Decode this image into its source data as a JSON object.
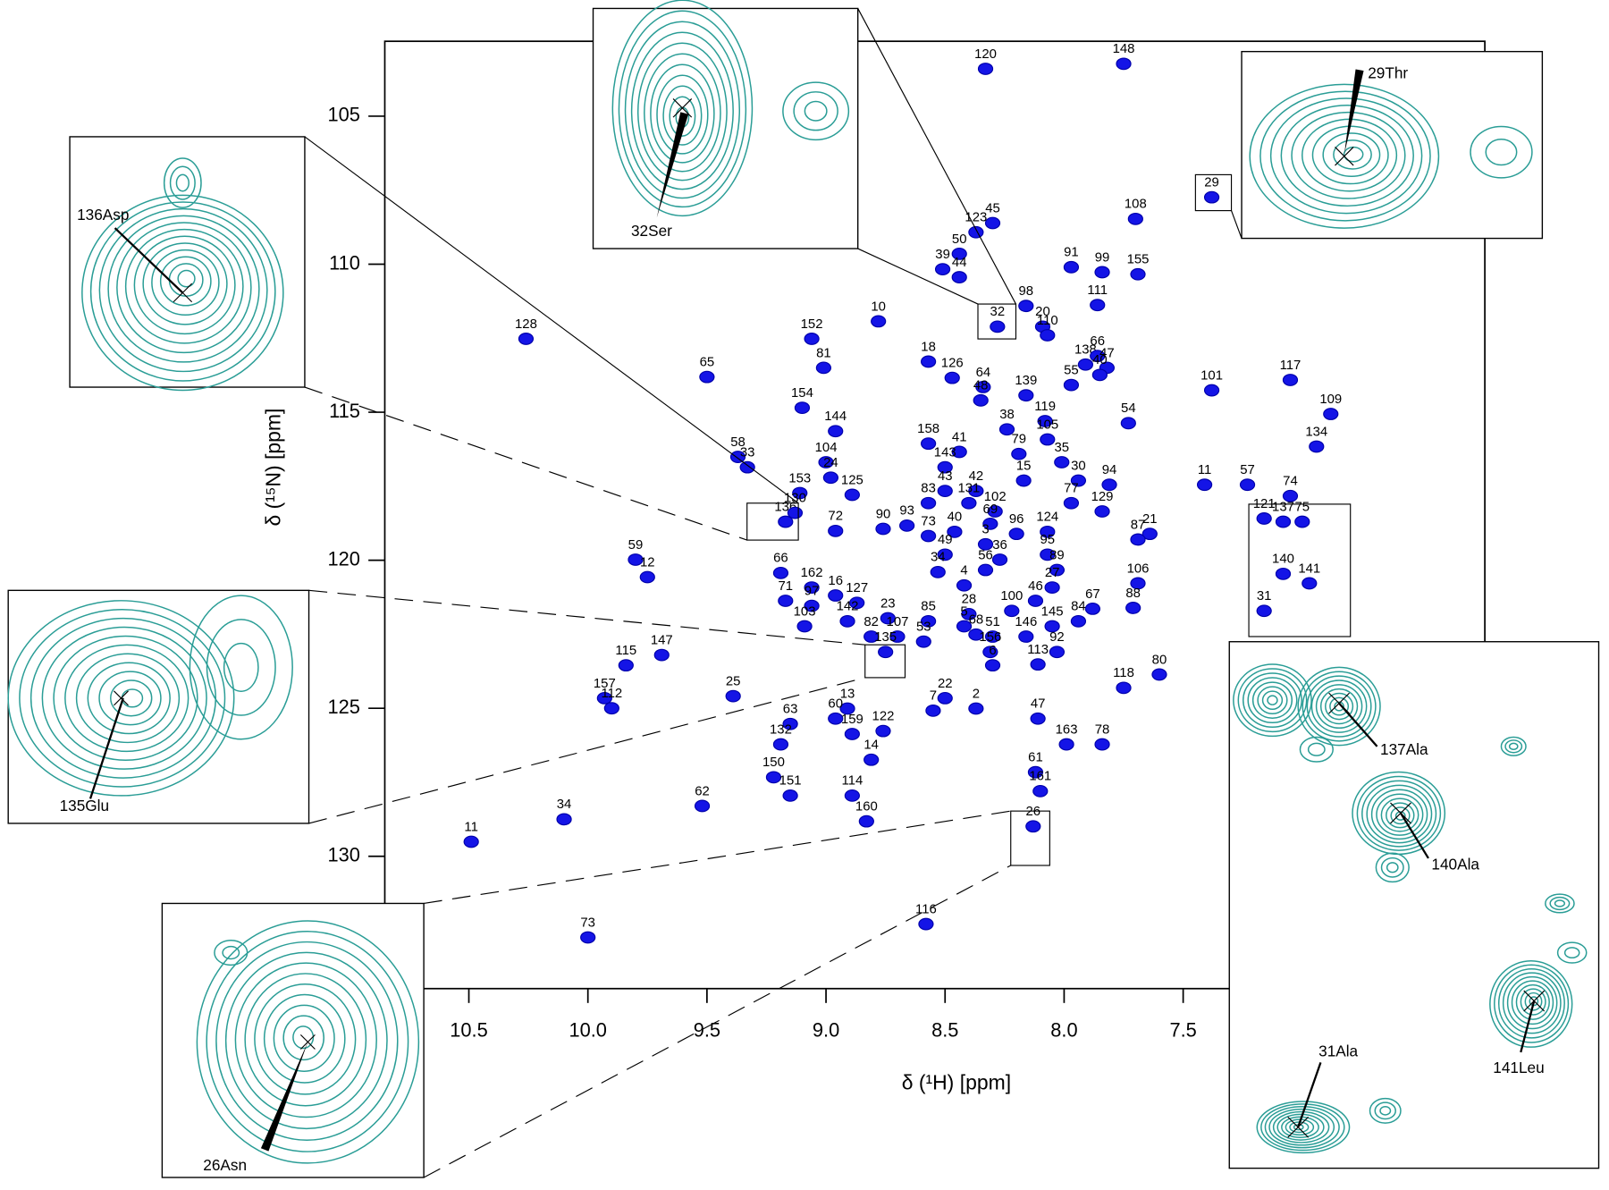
{
  "chart_data": {
    "type": "scatter",
    "xlabel": "δ (¹H) [ppm]",
    "ylabel": "δ (¹⁵N) [ppm]",
    "xlim": [
      10.853,
      6.233
    ],
    "ylim": [
      134.47,
      102.47
    ],
    "xticks": [
      10.5,
      {
        "value": 10,
        "label": "10.0"
      },
      9.5,
      {
        "value": 9,
        "label": "9.0"
      },
      8.5,
      {
        "value": 8,
        "label": "8.0"
      },
      7.5
    ],
    "yticks": [
      105,
      110,
      115,
      120,
      125,
      130
    ],
    "color": "#1414e6",
    "labels": [
      "120",
      "148",
      "108",
      "29",
      "45",
      "123",
      "50",
      "39",
      "44",
      "91",
      "99",
      "155",
      "98",
      "32",
      "20",
      "110",
      "111",
      "10",
      "128",
      "152",
      "81",
      "18",
      "64",
      "126",
      "138",
      "66",
      "47",
      "55",
      "40",
      "139",
      "48",
      "65",
      "154",
      "144",
      "38",
      "119",
      "105",
      "54",
      "101",
      "117",
      "109",
      "134",
      "158",
      "41",
      "79",
      "58",
      "33",
      "104",
      "24",
      "143",
      "35",
      "30",
      "15",
      "94",
      "43",
      "42",
      "11",
      "57",
      "74",
      "153",
      "125",
      "83",
      "131",
      "102",
      "77",
      "129",
      "136",
      "130",
      "72",
      "90",
      "93",
      "73",
      "40",
      "69",
      "96",
      "124",
      "121",
      "137",
      "75",
      "21",
      "87",
      "49",
      "3",
      "95",
      "36",
      "140",
      "59",
      "12",
      "66",
      "162",
      "16",
      "34",
      "56",
      "89",
      "106",
      "141",
      "71",
      "97",
      "127",
      "4",
      "27",
      "46",
      "100",
      "28",
      "67",
      "88",
      "23",
      "85",
      "142",
      "103",
      "5",
      "31",
      "145",
      "84",
      "82",
      "107",
      "68",
      "51",
      "146",
      "53",
      "135",
      "156",
      "92",
      "115",
      "147",
      "113",
      "6",
      "80",
      "118",
      "157",
      "112",
      "25",
      "22",
      "7",
      "2",
      "13",
      "63",
      "60",
      "159",
      "122",
      "47",
      "132",
      "163",
      "78",
      "14",
      "61",
      "150",
      "62",
      "114",
      "151",
      "161",
      "34",
      "11",
      "160",
      "26",
      "116",
      "73"
    ],
    "x": [
      8.33,
      7.75,
      7.7,
      7.38,
      8.3,
      8.37,
      8.44,
      8.51,
      8.44,
      7.97,
      7.84,
      7.69,
      8.16,
      8.28,
      8.09,
      8.07,
      7.86,
      8.78,
      10.26,
      9.06,
      9.01,
      8.57,
      8.34,
      8.47,
      7.91,
      7.86,
      7.82,
      7.97,
      7.85,
      8.16,
      8.35,
      9.5,
      9.1,
      8.96,
      8.24,
      8.08,
      8.07,
      7.73,
      7.38,
      7.05,
      6.88,
      6.94,
      8.57,
      8.44,
      8.19,
      9.37,
      9.33,
      9.0,
      8.98,
      8.5,
      8.01,
      7.94,
      8.17,
      7.81,
      8.5,
      8.37,
      7.41,
      7.23,
      7.05,
      9.11,
      8.89,
      8.57,
      8.4,
      8.29,
      7.97,
      7.84,
      9.17,
      9.13,
      8.96,
      8.76,
      8.66,
      8.57,
      8.46,
      8.31,
      8.2,
      8.07,
      7.16,
      7.08,
      7.0,
      7.64,
      7.69,
      8.5,
      8.33,
      8.07,
      8.27,
      7.08,
      9.8,
      9.75,
      9.19,
      9.06,
      8.96,
      8.53,
      8.33,
      8.03,
      7.69,
      6.97,
      9.17,
      9.06,
      8.87,
      8.42,
      8.05,
      8.12,
      8.22,
      8.4,
      7.88,
      7.71,
      8.74,
      8.57,
      8.91,
      9.09,
      8.42,
      7.16,
      8.05,
      7.94,
      8.81,
      8.7,
      8.37,
      8.3,
      8.16,
      8.59,
      8.75,
      8.31,
      8.03,
      9.84,
      9.69,
      8.11,
      8.3,
      7.6,
      7.75,
      9.93,
      9.9,
      9.39,
      8.5,
      8.55,
      8.37,
      8.91,
      9.15,
      8.96,
      8.89,
      8.76,
      8.11,
      9.19,
      7.99,
      7.84,
      8.81,
      8.12,
      9.22,
      9.52,
      8.89,
      9.15,
      8.1,
      10.1,
      10.49,
      8.83,
      8.13,
      8.58,
      10.0
    ],
    "values": [
      103.4,
      103.23,
      108.47,
      107.74,
      108.61,
      108.92,
      109.65,
      110.17,
      110.44,
      110.1,
      110.27,
      110.34,
      111.41,
      112.11,
      112.11,
      112.4,
      111.38,
      111.93,
      112.52,
      112.52,
      113.5,
      113.29,
      114.15,
      113.84,
      113.39,
      113.1,
      113.5,
      114.08,
      113.74,
      114.43,
      114.6,
      113.81,
      114.85,
      115.64,
      115.58,
      115.3,
      115.92,
      115.37,
      114.26,
      113.91,
      115.06,
      116.16,
      116.06,
      116.34,
      116.41,
      116.51,
      116.86,
      116.69,
      117.21,
      116.86,
      116.69,
      117.31,
      117.31,
      117.45,
      117.66,
      117.66,
      117.45,
      117.45,
      117.83,
      117.73,
      117.79,
      118.07,
      118.07,
      118.35,
      118.07,
      118.35,
      118.7,
      118.4,
      119.01,
      118.94,
      118.83,
      119.18,
      119.04,
      118.77,
      119.11,
      119.04,
      118.59,
      118.7,
      118.7,
      119.11,
      119.3,
      119.81,
      119.46,
      119.81,
      119.98,
      120.46,
      119.98,
      120.57,
      120.43,
      120.92,
      121.19,
      120.4,
      120.33,
      120.33,
      120.78,
      120.78,
      121.37,
      121.54,
      121.44,
      120.85,
      120.92,
      121.37,
      121.71,
      121.82,
      121.64,
      121.61,
      121.96,
      122.06,
      122.06,
      122.23,
      122.23,
      121.71,
      122.23,
      122.06,
      122.58,
      122.58,
      122.51,
      122.58,
      122.58,
      122.75,
      123.1,
      123.1,
      123.1,
      123.55,
      123.2,
      123.52,
      123.55,
      123.86,
      124.31,
      124.66,
      125.0,
      124.59,
      124.66,
      125.08,
      125.01,
      125.01,
      125.53,
      125.35,
      125.87,
      125.77,
      125.35,
      126.22,
      126.22,
      126.22,
      126.74,
      127.16,
      127.33,
      128.3,
      127.95,
      127.95,
      127.8,
      128.75,
      129.51,
      128.82,
      128.99,
      132.29,
      132.74
    ],
    "annotations": [
      "32Ser",
      "29Thr",
      "136Asp",
      "135Glu",
      "26Asn",
      "137Ala",
      "140Ala",
      "141Leu",
      "31Ala"
    ]
  }
}
